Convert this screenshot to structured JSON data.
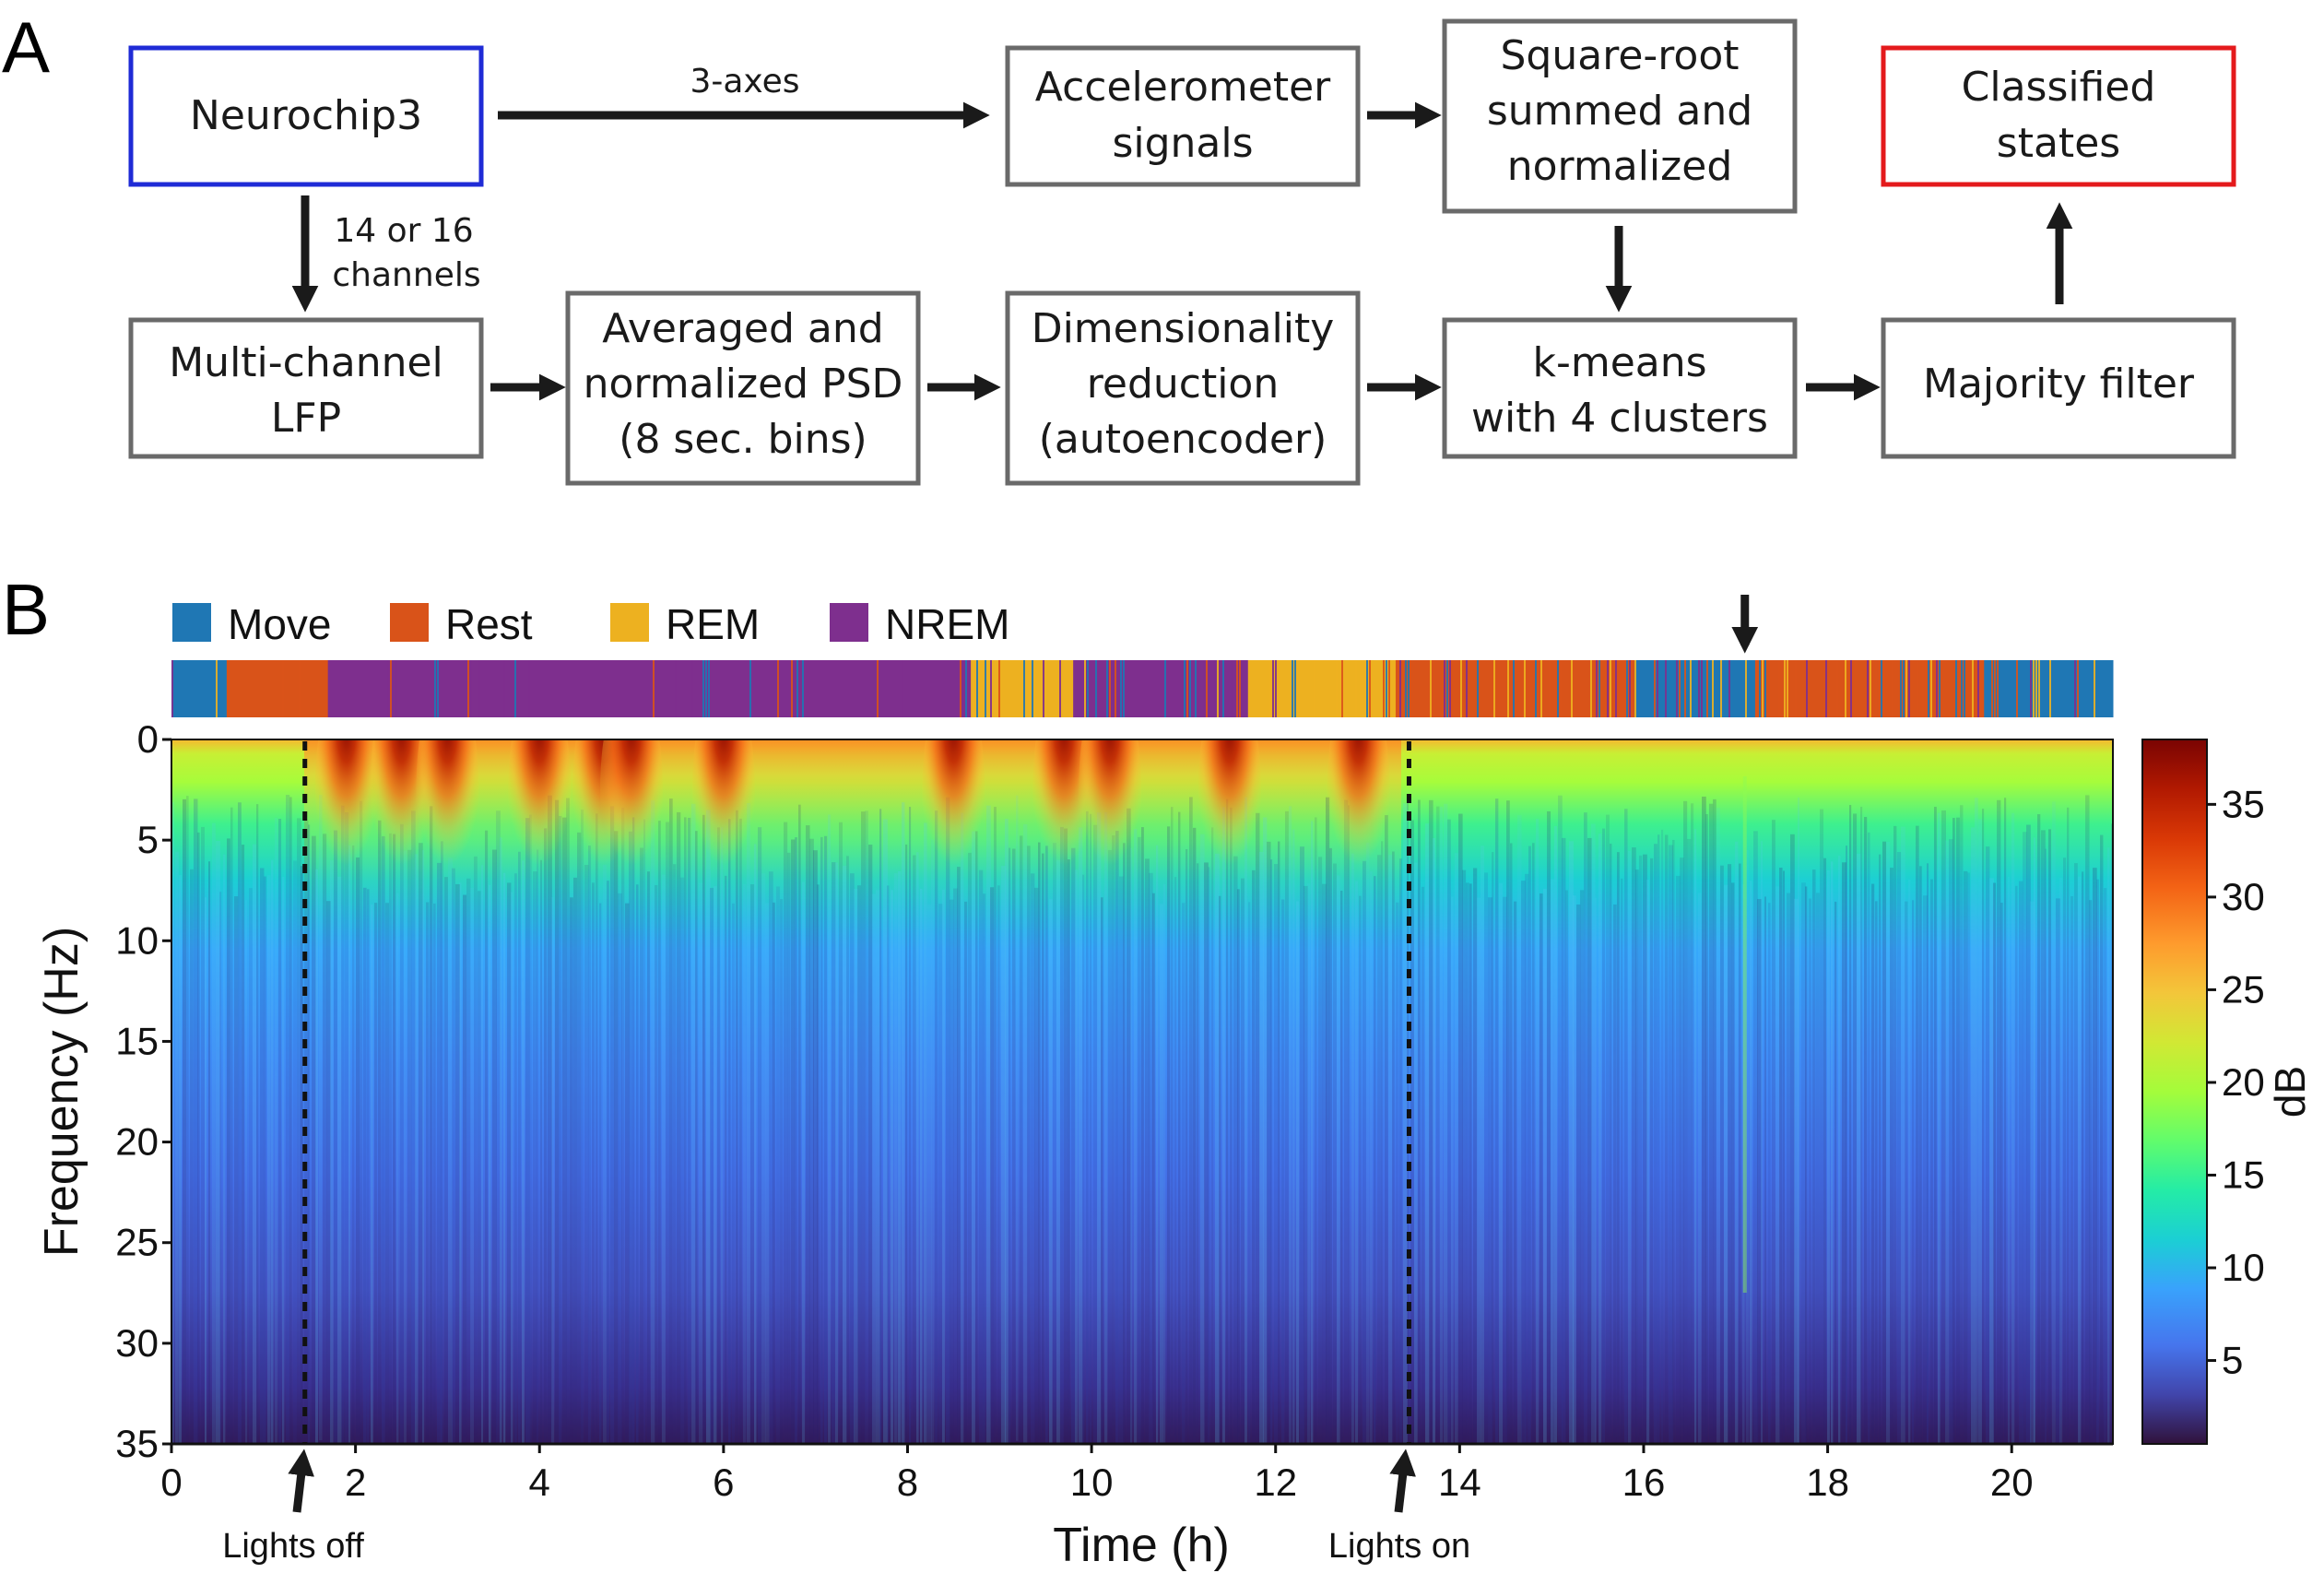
{
  "panel_a": {
    "letter": "A",
    "nodes": {
      "neurochip": [
        "Neurochip3"
      ],
      "accel": [
        "Accelerometer",
        "signals"
      ],
      "sqrt": [
        "Square-root",
        "summed and",
        "normalized"
      ],
      "classified": [
        "Classified",
        "states"
      ],
      "lfp": [
        "Multi-channel",
        "LFP"
      ],
      "psd": [
        "Averaged and",
        "normalized PSD",
        "(8 sec. bins)"
      ],
      "dimred": [
        "Dimensionality",
        "reduction",
        "(autoencoder)"
      ],
      "kmeans": [
        "k-means",
        "with 4 clusters"
      ],
      "majority": [
        "Majority filter"
      ]
    },
    "edge_labels": {
      "axes": "3-axes",
      "channels": [
        "14 or 16",
        "channels"
      ]
    }
  },
  "panel_b": {
    "letter": "B",
    "legend": [
      {
        "label": "Move",
        "color": "#1f77b4"
      },
      {
        "label": "Rest",
        "color": "#d95319"
      },
      {
        "label": "REM",
        "color": "#edb120"
      },
      {
        "label": "NREM",
        "color": "#7e2f8e"
      }
    ],
    "annotations": {
      "lights_off": "Lights off",
      "lights_on": "Lights on"
    },
    "colorbar_label": "dB"
  },
  "chart_data": {
    "type": "heatmap",
    "title": "",
    "xlabel": "Time (h)",
    "ylabel": "Frequency (Hz)",
    "xlim": [
      0,
      21.1
    ],
    "ylim": [
      35,
      0
    ],
    "xticks": [
      0,
      2,
      4,
      6,
      8,
      10,
      12,
      14,
      16,
      18,
      20
    ],
    "yticks": [
      0,
      5,
      10,
      15,
      20,
      25,
      30,
      35
    ],
    "colorbar": {
      "label": "dB",
      "range": [
        0.5,
        38.5
      ],
      "ticks": [
        5,
        10,
        15,
        20,
        25,
        30,
        35
      ],
      "colormap": "turbo"
    },
    "vertical_lines_h": [
      1.45,
      13.45
    ],
    "state_arrow_h": 17.1,
    "high_power_bursts_h": [
      1.9,
      2.5,
      3.0,
      4.0,
      4.7,
      5.0,
      6.0,
      8.5,
      9.7,
      10.2,
      11.5,
      12.9
    ],
    "state_segments": [
      {
        "start": 0,
        "end": 0.6,
        "state": "Move"
      },
      {
        "start": 0.6,
        "end": 1.7,
        "state": "Rest"
      },
      {
        "start": 1.7,
        "end": 8.7,
        "state": "NREM"
      },
      {
        "start": 8.7,
        "end": 9.8,
        "state": "REM"
      },
      {
        "start": 9.8,
        "end": 11.7,
        "state": "NREM"
      },
      {
        "start": 11.7,
        "end": 13.3,
        "state": "REM"
      },
      {
        "start": 13.3,
        "end": 15.9,
        "state": "Rest"
      },
      {
        "start": 15.9,
        "end": 17.2,
        "state": "Move"
      },
      {
        "start": 17.2,
        "end": 19.7,
        "state": "Rest"
      },
      {
        "start": 19.7,
        "end": 21.1,
        "state": "Move"
      }
    ]
  }
}
